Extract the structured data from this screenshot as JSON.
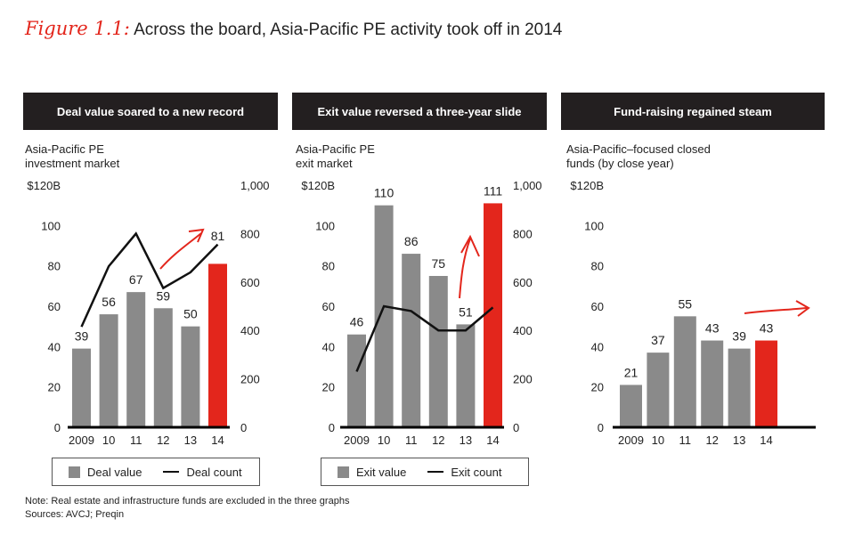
{
  "figure": {
    "label": "Figure 1.1:",
    "title": "Across the board, Asia-Pacific PE activity took off in 2014"
  },
  "panels": [
    {
      "header": "Deal value soared to a new record",
      "subtitle": [
        "Asia-Pacific PE",
        "investment market"
      ]
    },
    {
      "header": "Exit value reversed a three-year slide",
      "subtitle": [
        "Asia-Pacific PE",
        "exit market"
      ]
    },
    {
      "header": "Fund-raising regained steam",
      "subtitle": [
        "Asia-Pacific–focused closed",
        "funds (by close year)"
      ]
    }
  ],
  "legends": [
    {
      "bar_label": "Deal value",
      "line_label": "Deal count"
    },
    {
      "bar_label": "Exit value",
      "line_label": "Exit count"
    }
  ],
  "notes": [
    "Note: Real estate and infrastructure funds are excluded in the three graphs",
    "Sources: AVCJ; Preqin"
  ],
  "colors": {
    "bar": "#8a8a8a",
    "highlight": "#e3261c",
    "line": "#111111",
    "header_bg": "#231f20"
  },
  "chart_data": [
    {
      "type": "bar",
      "categories": [
        "2009",
        "10",
        "11",
        "12",
        "13",
        "14"
      ],
      "values": [
        39,
        56,
        67,
        59,
        50,
        81
      ],
      "y_ticks": [
        "0",
        "20",
        "40",
        "60",
        "80",
        "100",
        "$120B"
      ],
      "ylim": [
        0,
        120
      ],
      "y2_ticks": [
        "0",
        "200",
        "400",
        "600",
        "800",
        "1,000"
      ],
      "y2lim": [
        0,
        1000
      ],
      "line_values": [
        415,
        665,
        800,
        575,
        640,
        755
      ],
      "series": [
        {
          "name": "Deal value",
          "values": [
            39,
            56,
            67,
            59,
            50,
            81
          ]
        },
        {
          "name": "Deal count",
          "values": [
            415,
            665,
            800,
            575,
            640,
            755
          ]
        }
      ]
    },
    {
      "type": "bar",
      "categories": [
        "2009",
        "10",
        "11",
        "12",
        "13",
        "14"
      ],
      "values": [
        46,
        110,
        86,
        75,
        51,
        111
      ],
      "y_ticks": [
        "0",
        "20",
        "40",
        "60",
        "80",
        "100",
        "$120B"
      ],
      "ylim": [
        0,
        120
      ],
      "y2_ticks": [
        "0",
        "200",
        "400",
        "600",
        "800",
        "1,000"
      ],
      "y2lim": [
        0,
        1000
      ],
      "line_values": [
        230,
        500,
        480,
        400,
        400,
        495
      ],
      "series": [
        {
          "name": "Exit value",
          "values": [
            46,
            110,
            86,
            75,
            51,
            111
          ]
        },
        {
          "name": "Exit count",
          "values": [
            230,
            500,
            480,
            400,
            400,
            495
          ]
        }
      ]
    },
    {
      "type": "bar",
      "categories": [
        "2009",
        "10",
        "11",
        "12",
        "13",
        "14"
      ],
      "values": [
        21,
        37,
        55,
        43,
        39,
        43
      ],
      "y_ticks": [
        "0",
        "20",
        "40",
        "60",
        "80",
        "100",
        "$120B"
      ],
      "ylim": [
        0,
        120
      ]
    }
  ]
}
